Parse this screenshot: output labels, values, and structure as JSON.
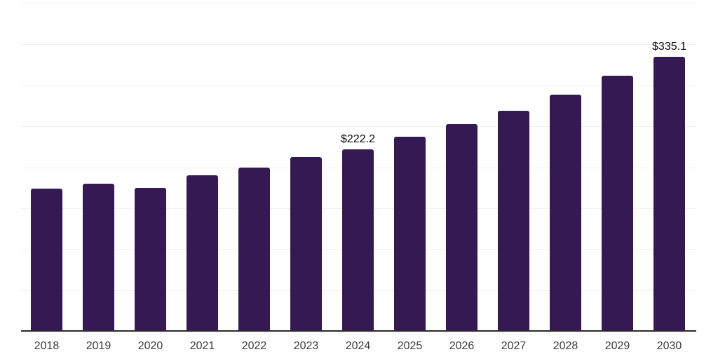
{
  "chart": {
    "background_color": "#ffffff",
    "bar_color": "#341952",
    "axis_color": "#2b2b2b",
    "gridline_color": "#f1f1f3",
    "tick_label_color": "#3d3d3d",
    "data_label_color": "#0a0a0a"
  },
  "chart_data": {
    "type": "bar",
    "title": "",
    "xlabel": "",
    "ylabel": "",
    "categories": [
      "2018",
      "2019",
      "2020",
      "2021",
      "2022",
      "2023",
      "2024",
      "2025",
      "2026",
      "2027",
      "2028",
      "2029",
      "2030"
    ],
    "values": [
      174,
      180,
      175,
      190,
      200,
      212,
      222.2,
      237,
      253,
      269,
      289,
      312,
      335.1
    ],
    "data_labels": [
      {
        "category": "2024",
        "text": "$222.2"
      },
      {
        "category": "2030",
        "text": "$335.1"
      }
    ],
    "ylim": [
      0,
      400
    ],
    "grid_step": 50,
    "grid": "horizontal",
    "legend": "none",
    "y_axis_tick_labels": "none"
  }
}
